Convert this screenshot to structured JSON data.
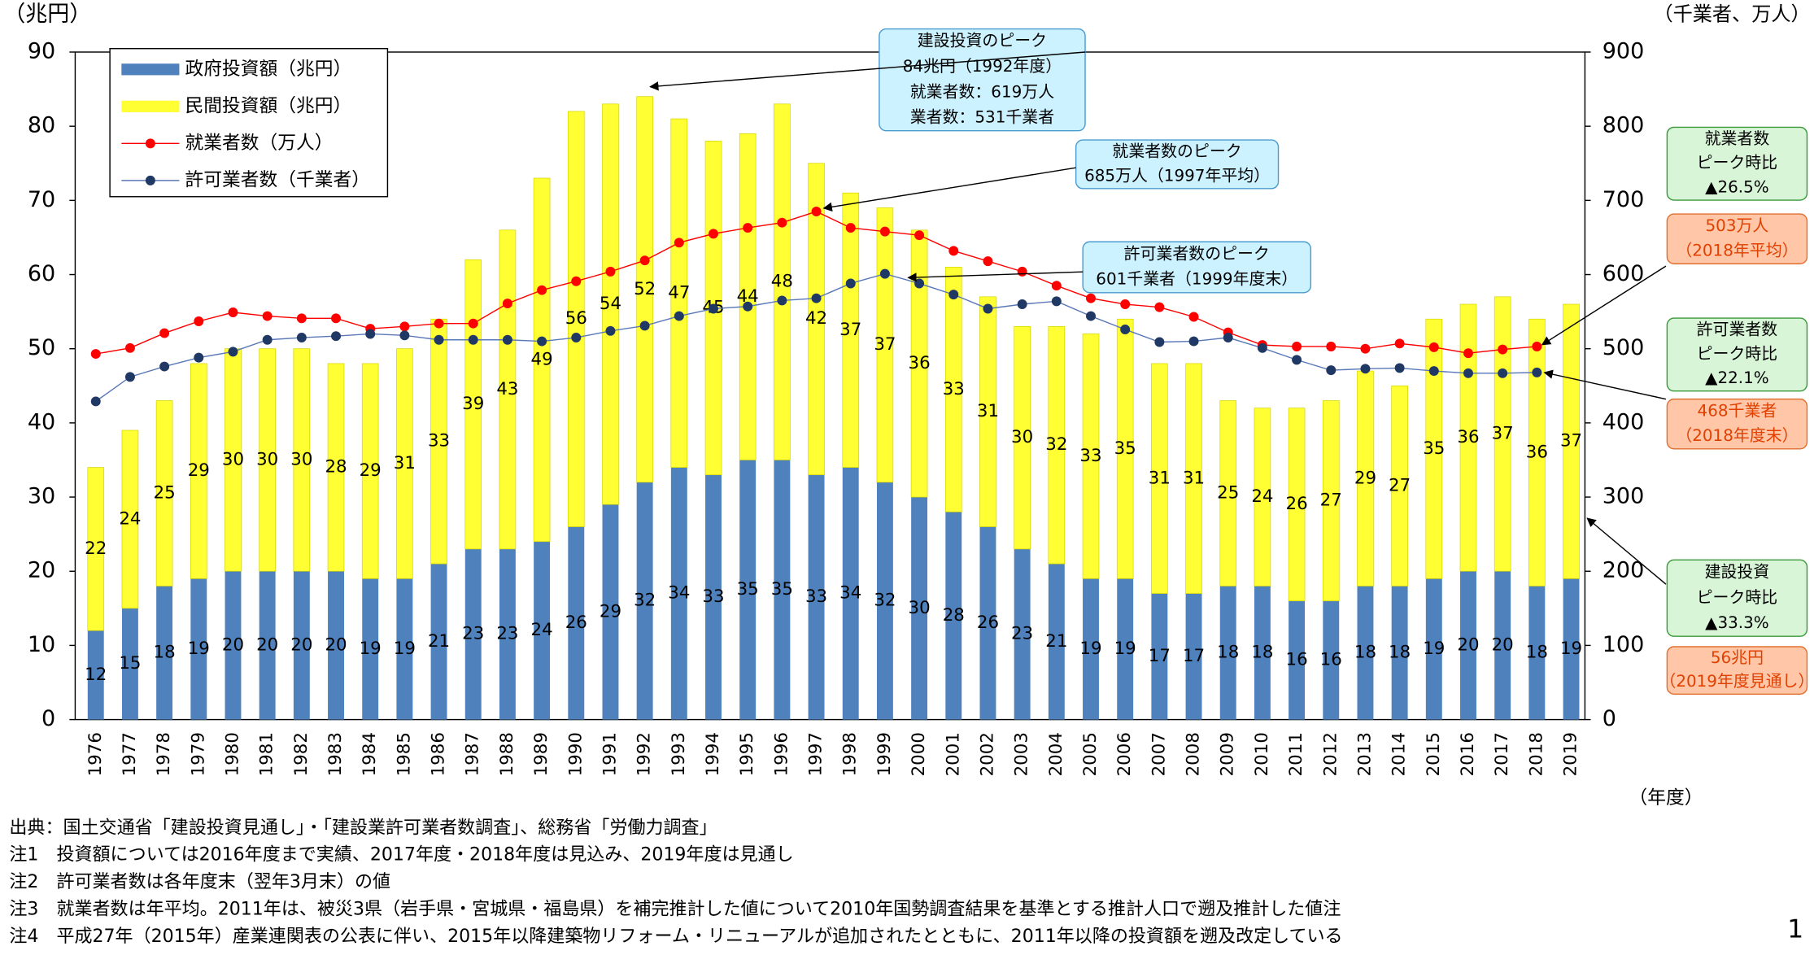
{
  "chart_data": {
    "type": "bar",
    "y_label": "（兆円）",
    "y2_label": "（千業者、万人）",
    "x_label": "（年度）",
    "categories": [
      "1976",
      "1977",
      "1978",
      "1979",
      "1980",
      "1981",
      "1982",
      "1983",
      "1984",
      "1985",
      "1986",
      "1987",
      "1988",
      "1989",
      "1990",
      "1991",
      "1992",
      "1993",
      "1994",
      "1995",
      "1996",
      "1997",
      "1998",
      "1999",
      "2000",
      "2001",
      "2002",
      "2003",
      "2004",
      "2005",
      "2006",
      "2007",
      "2008",
      "2009",
      "2010",
      "2011",
      "2012",
      "2013",
      "2014",
      "2015",
      "2016",
      "2017",
      "2018",
      "2019"
    ],
    "series": [
      {
        "name": "政府投資額（兆円）",
        "type": "bar",
        "color": "#4f81bd",
        "values": [
          12,
          15,
          18,
          19,
          20,
          20,
          20,
          20,
          19,
          19,
          21,
          23,
          23,
          24,
          26,
          29,
          32,
          34,
          33,
          35,
          35,
          33,
          34,
          32,
          30,
          28,
          26,
          23,
          21,
          19,
          19,
          17,
          17,
          18,
          18,
          16,
          16,
          18,
          18,
          19,
          20,
          20,
          18,
          19
        ]
      },
      {
        "name": "民間投資額（兆円）",
        "type": "bar",
        "color": "#ffff33",
        "values": [
          22,
          24,
          25,
          29,
          30,
          30,
          30,
          28,
          29,
          31,
          33,
          39,
          43,
          49,
          56,
          54,
          52,
          47,
          45,
          44,
          48,
          42,
          37,
          37,
          36,
          33,
          31,
          30,
          32,
          33,
          35,
          31,
          31,
          25,
          24,
          26,
          27,
          29,
          27,
          35,
          36,
          37,
          36,
          37
        ]
      },
      {
        "name": "就業者数（万人）",
        "type": "line",
        "axis": "y2",
        "color": "#ff0000",
        "values": [
          493,
          501,
          521,
          537,
          549,
          544,
          541,
          541,
          527,
          530,
          534,
          534,
          561,
          579,
          591,
          604,
          619,
          643,
          655,
          663,
          670,
          685,
          663,
          658,
          653,
          632,
          618,
          604,
          585,
          568,
          560,
          556,
          543,
          522,
          505,
          503,
          503,
          500,
          507,
          502,
          494,
          499,
          503,
          null
        ]
      },
      {
        "name": "許可業者数（千業者）",
        "type": "line",
        "axis": "y2",
        "color": "#1f3864",
        "values": [
          429,
          462,
          476,
          488,
          496,
          512,
          515,
          517,
          520,
          518,
          512,
          512,
          512,
          510,
          515,
          524,
          531,
          544,
          554,
          557,
          565,
          568,
          588,
          601,
          588,
          573,
          554,
          560,
          564,
          544,
          526,
          509,
          510,
          515,
          501,
          485,
          471,
          473,
          474,
          470,
          467,
          467,
          468,
          null
        ]
      }
    ],
    "ylim": [
      0,
      90
    ],
    "yticks": [
      0,
      10,
      20,
      30,
      40,
      50,
      60,
      70,
      80,
      90
    ],
    "y2lim": [
      0,
      900
    ],
    "y2ticks": [
      0,
      100,
      200,
      300,
      400,
      500,
      600,
      700,
      800,
      900
    ],
    "annotations": [
      [
        "建設投資のピーク",
        "84兆円（1992年度）",
        "就業者数：619万人",
        "業者数：531千業者"
      ],
      [
        "就業者数のピーク",
        "685万人（1997年平均）"
      ],
      [
        "許可業者数のピーク",
        "601千業者（1999年度末）"
      ],
      [
        "就業者数",
        "ピーク時比",
        "▲26.5%"
      ],
      [
        "503万人",
        "（2018年平均）"
      ],
      [
        "許可業者数",
        "ピーク時比",
        "▲22.1%"
      ],
      [
        "468千業者",
        "（2018年度末）"
      ],
      [
        "建設投資",
        "ピーク時比",
        "▲33.3%"
      ],
      [
        "56兆円",
        "（2019年度見通し）"
      ]
    ],
    "notes": [
      "出典：国土交通省「建設投資見通し」・「建設業許可業者数調査」、総務省「労働力調査」",
      "注1　投資額については2016年度まで実績、2017年度・2018年度は見込み、2019年度は見通し",
      "注2　許可業者数は各年度末（翌年3月末）の値",
      "注3　就業者数は年平均。2011年は、被災3県（岩手県・宮城県・福島県）を補完推計した値について2010年国勢調査結果を基準とする推計人口で遡及推計した値注",
      "注4　平成27年（2015年）産業連関表の公表に伴い、2015年以降建築物リフォーム・リニューアルが追加されたとともに、2011年以降の投資額を遡及改定している"
    ],
    "page_number": "1"
  }
}
